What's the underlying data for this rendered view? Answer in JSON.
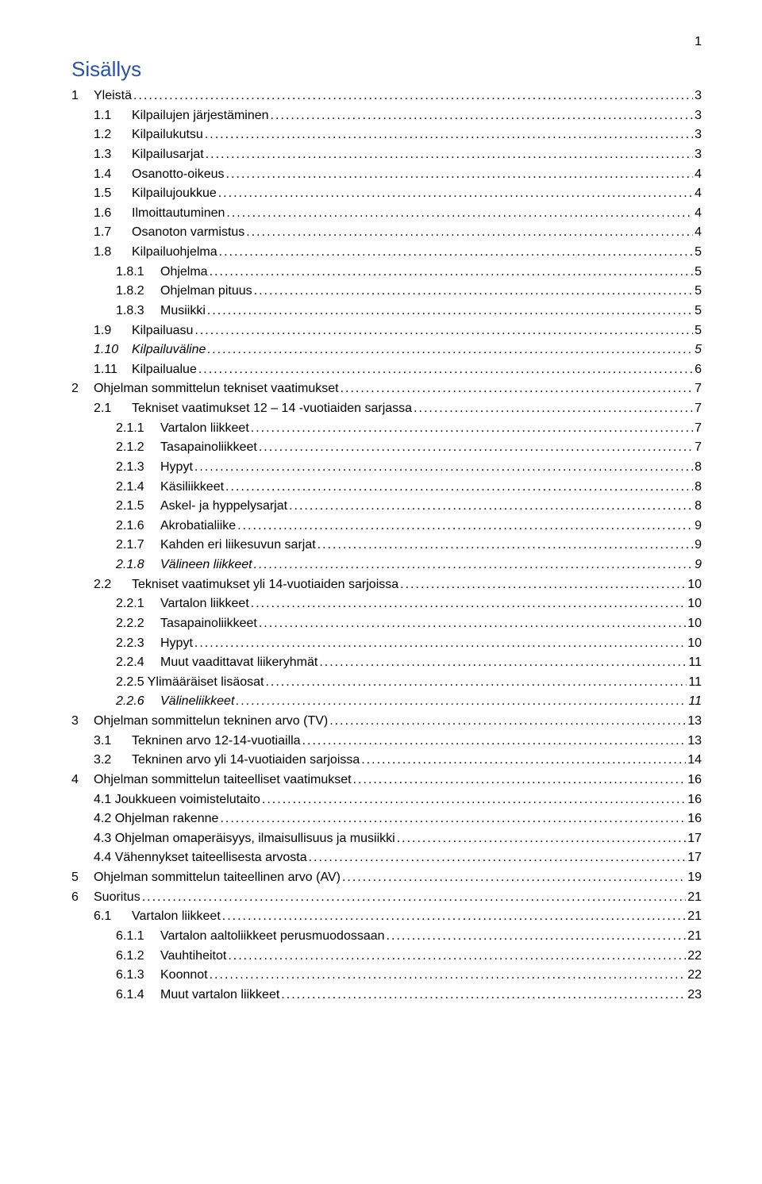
{
  "page_number": "1",
  "heading": "Sisällys",
  "text_color": "#000000",
  "heading_color": "#2e5496",
  "background_color": "#ffffff",
  "font_family": "Verdana",
  "base_font_size": 16,
  "heading_font_size": 26,
  "toc": {
    "entries": [
      {
        "num": "1",
        "title": "Yleistä",
        "page": "3",
        "indent": 0,
        "italic": false
      },
      {
        "num": "1.1",
        "title": "Kilpailujen järjestäminen",
        "page": "3",
        "indent": 1,
        "italic": false
      },
      {
        "num": "1.2",
        "title": "Kilpailukutsu",
        "page": "3",
        "indent": 1,
        "italic": false
      },
      {
        "num": "1.3",
        "title": "Kilpailusarjat",
        "page": "3",
        "indent": 1,
        "italic": false
      },
      {
        "num": "1.4",
        "title": "Osanotto-oikeus",
        "page": "4",
        "indent": 1,
        "italic": false
      },
      {
        "num": "1.5",
        "title": "Kilpailujoukkue",
        "page": "4",
        "indent": 1,
        "italic": false
      },
      {
        "num": "1.6",
        "title": "Ilmoittautuminen",
        "page": "4",
        "indent": 1,
        "italic": false
      },
      {
        "num": "1.7",
        "title": "Osanoton varmistus",
        "page": "4",
        "indent": 1,
        "italic": false
      },
      {
        "num": "1.8",
        "title": "Kilpailuohjelma",
        "page": "5",
        "indent": 1,
        "italic": false
      },
      {
        "num": "1.8.1",
        "title": "Ohjelma",
        "page": "5",
        "indent": 2,
        "italic": false
      },
      {
        "num": "1.8.2",
        "title": "Ohjelman pituus",
        "page": "5",
        "indent": 2,
        "italic": false
      },
      {
        "num": "1.8.3",
        "title": "Musiikki",
        "page": "5",
        "indent": 2,
        "italic": false
      },
      {
        "num": "1.9",
        "title": "Kilpailuasu",
        "page": "5",
        "indent": 1,
        "italic": false
      },
      {
        "num": "1.10",
        "title": "Kilpailuväline",
        "page": "5",
        "indent": 1,
        "italic": true
      },
      {
        "num": "1.11",
        "title": "Kilpailualue",
        "page": "6",
        "indent": 1,
        "italic": false
      },
      {
        "num": "2",
        "title": "Ohjelman sommittelun tekniset vaatimukset",
        "page": "7",
        "indent": 0,
        "italic": false
      },
      {
        "num": "2.1",
        "title": "Tekniset vaatimukset 12 – 14 -vuotiaiden sarjassa",
        "page": "7",
        "indent": 1,
        "italic": false
      },
      {
        "num": "2.1.1",
        "title": "Vartalon liikkeet",
        "page": "7",
        "indent": 2,
        "italic": false
      },
      {
        "num": "2.1.2",
        "title": "Tasapainoliikkeet",
        "page": "7",
        "indent": 2,
        "italic": false
      },
      {
        "num": "2.1.3",
        "title": "Hypyt",
        "page": "8",
        "indent": 2,
        "italic": false
      },
      {
        "num": "2.1.4",
        "title": "Käsiliikkeet",
        "page": "8",
        "indent": 2,
        "italic": false
      },
      {
        "num": "2.1.5",
        "title": "Askel- ja hyppelysarjat",
        "page": "8",
        "indent": 2,
        "italic": false
      },
      {
        "num": "2.1.6",
        "title": "Akrobatialiike",
        "page": "9",
        "indent": 2,
        "italic": false
      },
      {
        "num": "2.1.7",
        "title": "Kahden eri liikesuvun sarjat",
        "page": "9",
        "indent": 2,
        "italic": false
      },
      {
        "num": "2.1.8",
        "title": "Välineen liikkeet",
        "page": "9",
        "indent": 2,
        "italic": true
      },
      {
        "num": "2.2",
        "title": "Tekniset vaatimukset yli 14-vuotiaiden sarjoissa",
        "page": "10",
        "indent": 1,
        "italic": false
      },
      {
        "num": "2.2.1",
        "title": "Vartalon liikkeet",
        "page": "10",
        "indent": 2,
        "italic": false
      },
      {
        "num": "2.2.2",
        "title": "Tasapainoliikkeet",
        "page": "10",
        "indent": 2,
        "italic": false
      },
      {
        "num": "2.2.3",
        "title": "Hypyt",
        "page": "10",
        "indent": 2,
        "italic": false
      },
      {
        "num": "2.2.4",
        "title": "Muut vaadittavat liikeryhmät",
        "page": "11",
        "indent": 2,
        "italic": false
      },
      {
        "num": "2.2.5",
        "title": "Ylimääräiset lisäosat",
        "page": "11",
        "indent": 2,
        "italic": false,
        "joined": true
      },
      {
        "num": "2.2.6",
        "title": "Välineliikkeet",
        "page": "11",
        "indent": 2,
        "italic": true
      },
      {
        "num": "3",
        "title": "Ohjelman sommittelun tekninen arvo (TV)",
        "page": "13",
        "indent": 0,
        "italic": false
      },
      {
        "num": "3.1",
        "title": "Tekninen arvo 12-14-vuotiailla",
        "page": "13",
        "indent": 1,
        "italic": false
      },
      {
        "num": "3.2",
        "title": "Tekninen arvo yli 14-vuotiaiden sarjoissa",
        "page": "14",
        "indent": 1,
        "italic": false
      },
      {
        "num": "4",
        "title": "Ohjelman sommittelun taiteelliset vaatimukset",
        "page": "16",
        "indent": 0,
        "italic": false
      },
      {
        "num": "4.1",
        "title": "Joukkueen voimistelutaito",
        "page": "16",
        "indent": 1,
        "italic": false,
        "joined": true
      },
      {
        "num": "4.2",
        "title": "Ohjelman rakenne",
        "page": "16",
        "indent": 1,
        "italic": false,
        "joined": true
      },
      {
        "num": "4.3",
        "title": "Ohjelman omaperäisyys, ilmaisullisuus ja musiikki",
        "page": "17",
        "indent": 1,
        "italic": false,
        "joined": true
      },
      {
        "num": "4.4",
        "title": "Vähennykset taiteellisesta arvosta",
        "page": "17",
        "indent": 1,
        "italic": false,
        "joined": true
      },
      {
        "num": "5",
        "title": "Ohjelman sommittelun taiteellinen arvo (AV)",
        "page": "19",
        "indent": 0,
        "italic": false
      },
      {
        "num": "6",
        "title": "Suoritus",
        "page": "21",
        "indent": 0,
        "italic": false
      },
      {
        "num": "6.1",
        "title": "Vartalon liikkeet",
        "page": "21",
        "indent": 1,
        "italic": false
      },
      {
        "num": "6.1.1",
        "title": "Vartalon aaltoliikkeet perusmuodossaan",
        "page": "21",
        "indent": 2,
        "italic": false
      },
      {
        "num": "6.1.2",
        "title": "Vauhtiheitot",
        "page": "22",
        "indent": 2,
        "italic": false
      },
      {
        "num": "6.1.3",
        "title": "Koonnot",
        "page": "22",
        "indent": 2,
        "italic": false
      },
      {
        "num": "6.1.4",
        "title": "Muut vartalon liikkeet",
        "page": "23",
        "indent": 2,
        "italic": false
      }
    ]
  }
}
